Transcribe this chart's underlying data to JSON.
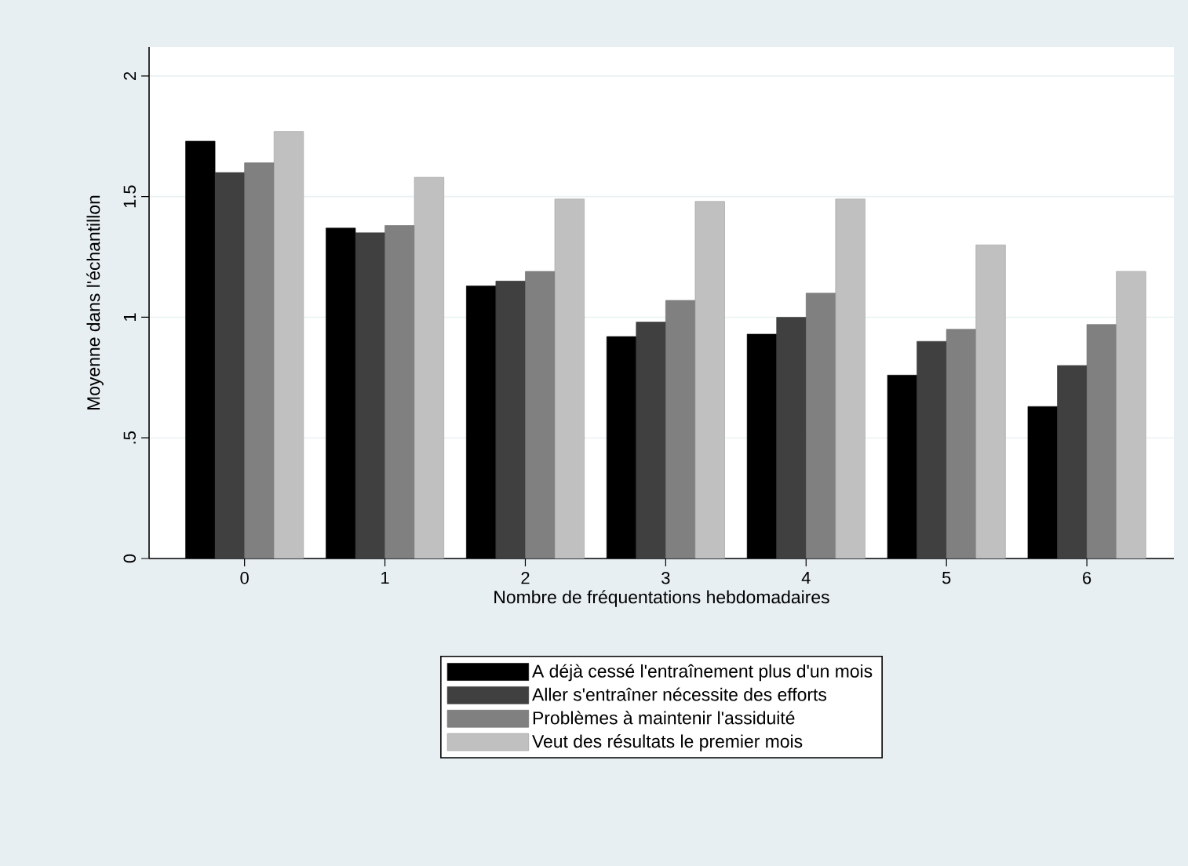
{
  "chart_data": {
    "type": "bar",
    "xlabel": "Nombre de fréquentations hebdomadaires",
    "ylabel": "Moyenne dans l'échantillon",
    "categories": [
      "0",
      "1",
      "2",
      "3",
      "4",
      "5",
      "6"
    ],
    "series": [
      {
        "name": "A déjà cessé l'entraînement plus d'un mois",
        "color": "#000000",
        "values": [
          1.73,
          1.37,
          1.13,
          0.92,
          0.93,
          0.76,
          0.63
        ]
      },
      {
        "name": "Aller s'entraîner nécessite des efforts",
        "color": "#404040",
        "values": [
          1.6,
          1.35,
          1.15,
          0.98,
          1.0,
          0.9,
          0.8
        ]
      },
      {
        "name": "Problèmes à maintenir l'assiduité",
        "color": "#808080",
        "values": [
          1.64,
          1.38,
          1.19,
          1.07,
          1.1,
          0.95,
          0.97
        ]
      },
      {
        "name": "Veut des résultats le premier mois",
        "color": "#c0c0c0",
        "values": [
          1.77,
          1.58,
          1.49,
          1.48,
          1.49,
          1.3,
          1.19
        ]
      }
    ],
    "ylim": [
      0,
      2.12
    ],
    "yticks": [
      0,
      {
        "value": 0.5,
        "label": ".5"
      },
      1,
      1.5,
      2
    ],
    "grid": "y",
    "legend": "bottom"
  }
}
